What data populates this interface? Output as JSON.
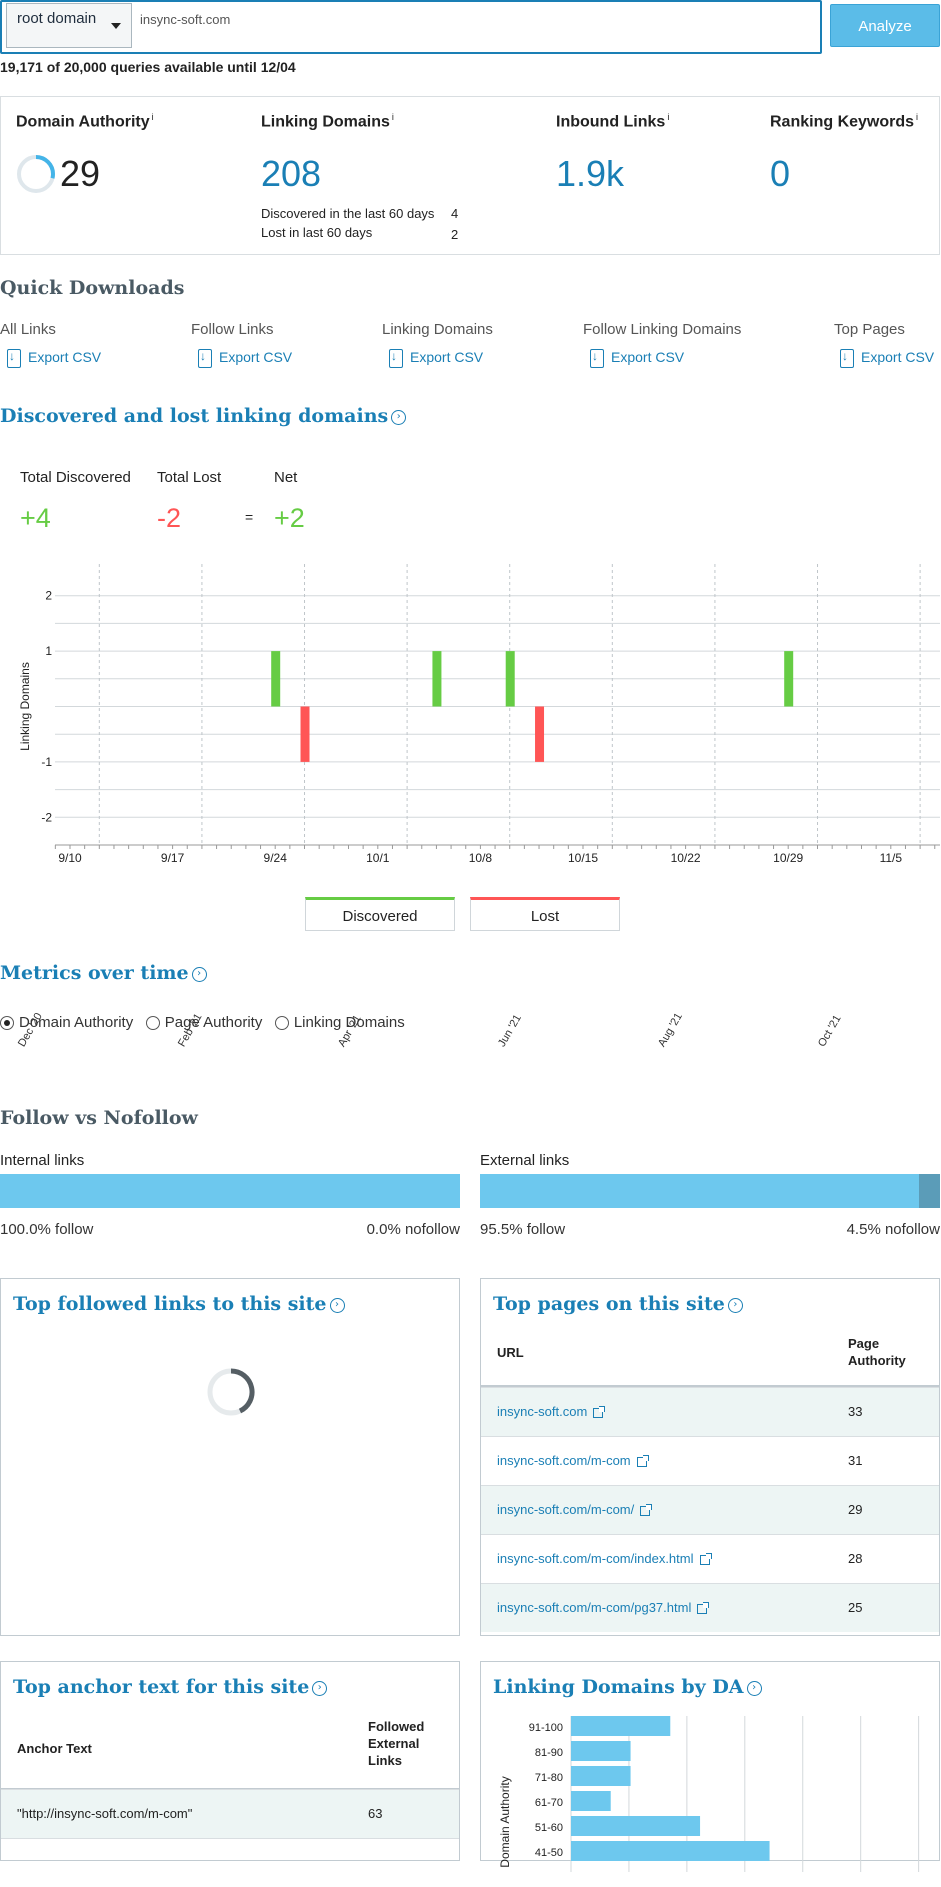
{
  "search": {
    "scope": "root domain",
    "url": "insync-soft.com",
    "analyze_label": "Analyze",
    "quota": "19,171 of 20,000 queries available until 12/04"
  },
  "metrics": {
    "domain_authority": {
      "label": "Domain Authority",
      "sup": "i",
      "value": "29",
      "ring_fraction": 0.29
    },
    "linking_domains": {
      "label": "Linking Domains",
      "sup": "i",
      "value": "208",
      "discovered_label": "Discovered in the last 60 days",
      "discovered_value": "4",
      "lost_label": "Lost in last 60 days",
      "lost_value": "2"
    },
    "inbound_links": {
      "label": "Inbound Links",
      "sup": "i",
      "value": "1.9k"
    },
    "ranking_keywords": {
      "label": "Ranking Keywords",
      "sup": "i",
      "value": "0"
    }
  },
  "quick_downloads": {
    "title": "Quick Downloads",
    "items": [
      {
        "label": "All Links",
        "action": "Export CSV"
      },
      {
        "label": "Follow Links",
        "action": "Export CSV"
      },
      {
        "label": "Linking Domains",
        "action": "Export CSV"
      },
      {
        "label": "Follow Linking Domains",
        "action": "Export CSV"
      },
      {
        "label": "Top Pages",
        "action": "Export CSV"
      }
    ]
  },
  "disc_lost": {
    "title": "Discovered and lost linking domains",
    "total_discovered_label": "Total Discovered",
    "total_discovered_value": "+4",
    "total_lost_label": "Total Lost",
    "total_lost_value": "-2",
    "equals": "=",
    "net_label": "Net",
    "net_value": "+2",
    "legend_discovered": "Discovered",
    "legend_lost": "Lost",
    "colors": {
      "discovered": "#66cc44",
      "lost": "#ff5555"
    }
  },
  "chart_data": {
    "type": "bar",
    "ylabel": "Linking Domains",
    "ylim": [
      -2.5,
      2.5
    ],
    "y_ticks": [
      "2",
      "1",
      "-1",
      "-2"
    ],
    "x_ticks": [
      "9/10",
      "9/17",
      "9/24",
      "10/1",
      "10/8",
      "10/15",
      "10/22",
      "10/29",
      "11/5"
    ],
    "series": [
      {
        "name": "Discovered",
        "x": [
          "9/24",
          "10/5",
          "10/10",
          "10/29"
        ],
        "values": [
          1,
          1,
          1,
          1
        ]
      },
      {
        "name": "Lost",
        "x": [
          "9/26",
          "10/12"
        ],
        "values": [
          -1,
          -1
        ]
      }
    ]
  },
  "metrics_over_time": {
    "title": "Metrics over time",
    "options": [
      {
        "label": "Domain Authority",
        "selected": true
      },
      {
        "label": "Page Authority",
        "selected": false
      },
      {
        "label": "Linking Domains",
        "selected": false
      }
    ],
    "x_ticks": [
      "Dec '20",
      "Feb '21",
      "Apr '21",
      "Jun '21",
      "Aug '21",
      "Oct '21"
    ]
  },
  "follow": {
    "title": "Follow vs Nofollow",
    "internal": {
      "label": "Internal links",
      "follow": "100.0% follow",
      "nofollow": "0.0% nofollow",
      "follow_fraction": 1.0
    },
    "external": {
      "label": "External links",
      "follow": "95.5% follow",
      "nofollow": "4.5% nofollow",
      "follow_fraction": 0.955
    },
    "colors": {
      "follow": "#6dc8ee",
      "nofollow": "#5b9cb8"
    }
  },
  "top_followed": {
    "title": "Top followed links to this site"
  },
  "top_pages": {
    "title": "Top pages on this site",
    "col_url": "URL",
    "col_pa": "Page Authority",
    "rows": [
      {
        "url": "insync-soft.com",
        "pa": "33"
      },
      {
        "url": "insync-soft.com/m-com",
        "pa": "31"
      },
      {
        "url": "insync-soft.com/m-com/",
        "pa": "29"
      },
      {
        "url": "insync-soft.com/m-com/index.html",
        "pa": "28"
      },
      {
        "url": "insync-soft.com/m-com/pg37.html",
        "pa": "25"
      }
    ]
  },
  "anchor": {
    "title": "Top anchor text for this site",
    "col_text": "Anchor Text",
    "col_links": "Followed External Links",
    "rows": [
      {
        "text": "\"http://insync-soft.com/m-com\"",
        "links": "63"
      }
    ]
  },
  "by_da": {
    "title": "Linking Domains by DA",
    "ylabel": "Domain Authority",
    "bins": [
      {
        "label": "91-100",
        "value": 10
      },
      {
        "label": "81-90",
        "value": 6
      },
      {
        "label": "71-80",
        "value": 6
      },
      {
        "label": "61-70",
        "value": 4
      },
      {
        "label": "51-60",
        "value": 13
      },
      {
        "label": "41-50",
        "value": 20
      }
    ]
  }
}
